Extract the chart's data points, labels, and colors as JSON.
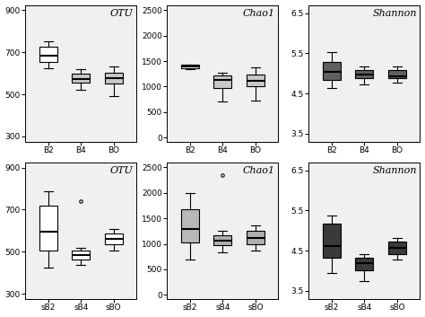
{
  "row1": {
    "labels": [
      "B2",
      "B4",
      "BO"
    ],
    "OTU": {
      "whislo": [
        625,
        523,
        490
      ],
      "q1": [
        655,
        555,
        552
      ],
      "median": [
        683,
        572,
        578
      ],
      "q3": [
        728,
        598,
        602
      ],
      "whishi": [
        753,
        618,
        632
      ],
      "fliers_x": [],
      "fliers_y": [],
      "ylim": [
        275,
        925
      ],
      "yticks": [
        300,
        500,
        700,
        900
      ],
      "box_colors": [
        "white",
        "#c8c8c8",
        "#c8c8c8"
      ]
    },
    "Chao1": {
      "whislo": [
        1335,
        715,
        720
      ],
      "q1": [
        1365,
        970,
        1000
      ],
      "median": [
        1395,
        1130,
        1110
      ],
      "q3": [
        1425,
        1220,
        1245
      ],
      "whishi": [
        1438,
        1270,
        1370
      ],
      "fliers_x": [],
      "fliers_y": [],
      "ylim": [
        -80,
        2600
      ],
      "yticks": [
        0,
        500,
        1000,
        1500,
        2000,
        2500
      ],
      "box_colors": [
        "white",
        "#c8c8c8",
        "#c8c8c8"
      ]
    },
    "Shannon": {
      "whislo": [
        4.63,
        4.73,
        4.78
      ],
      "q1": [
        4.83,
        4.88,
        4.88
      ],
      "median": [
        5.03,
        4.98,
        4.93
      ],
      "q3": [
        5.28,
        5.08,
        5.08
      ],
      "whishi": [
        5.52,
        5.18,
        5.18
      ],
      "fliers_x": [],
      "fliers_y": [],
      "ylim": [
        3.3,
        6.7
      ],
      "yticks": [
        3.5,
        4.5,
        5.5,
        6.5
      ],
      "box_colors": [
        "#606060",
        "#606060",
        "#606060"
      ]
    }
  },
  "row2": {
    "labels": [
      "sB2",
      "sB4",
      "sBO"
    ],
    "OTU": {
      "whislo": [
        425,
        438,
        505
      ],
      "q1": [
        505,
        462,
        535
      ],
      "median": [
        595,
        485,
        562
      ],
      "q3": [
        718,
        505,
        585
      ],
      "whishi": [
        785,
        518,
        608
      ],
      "fliers_x": [
        1
      ],
      "fliers_y": [
        738
      ],
      "ylim": [
        275,
        925
      ],
      "yticks": [
        300,
        500,
        700,
        900
      ],
      "box_colors": [
        "white",
        "white",
        "white"
      ]
    },
    "Chao1": {
      "whislo": [
        695,
        840,
        860
      ],
      "q1": [
        1020,
        970,
        990
      ],
      "median": [
        1290,
        1060,
        1120
      ],
      "q3": [
        1670,
        1170,
        1250
      ],
      "whishi": [
        1990,
        1250,
        1370
      ],
      "fliers_x": [
        1
      ],
      "fliers_y": [
        2345
      ],
      "ylim": [
        -80,
        2600
      ],
      "yticks": [
        0,
        500,
        1000,
        1500,
        2000,
        2500
      ],
      "box_colors": [
        "#b8b8b8",
        "#b0b0b0",
        "#b0b0b0"
      ]
    },
    "Shannon": {
      "whislo": [
        3.95,
        3.75,
        4.28
      ],
      "q1": [
        4.32,
        4.02,
        4.42
      ],
      "median": [
        4.62,
        4.18,
        4.58
      ],
      "q3": [
        5.18,
        4.32,
        4.72
      ],
      "whishi": [
        5.38,
        4.42,
        4.82
      ],
      "fliers_x": [],
      "fliers_y": [],
      "ylim": [
        3.3,
        6.7
      ],
      "yticks": [
        3.5,
        4.5,
        5.5,
        6.5
      ],
      "box_colors": [
        "#3a3a3a",
        "#3a3a3a",
        "#3a3a3a"
      ]
    }
  },
  "panel_titles": [
    "OTU",
    "Chao1",
    "Shannon"
  ],
  "ax_facecolor": "#f0f0f0",
  "fig_facecolor": "#ffffff"
}
